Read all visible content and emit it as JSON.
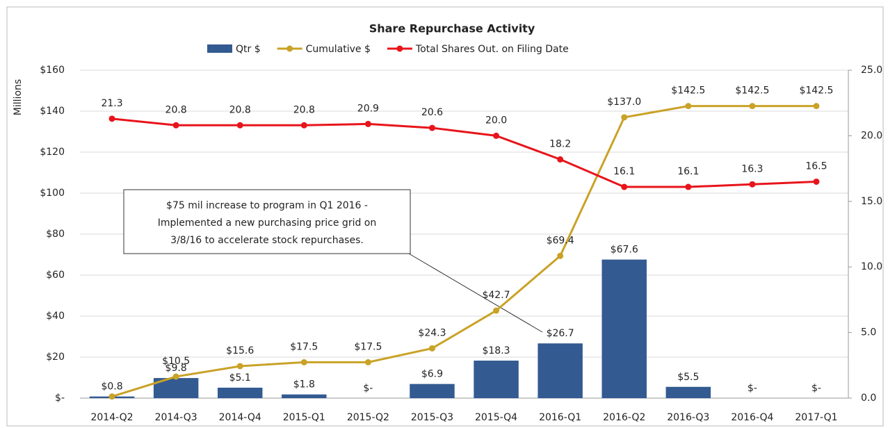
{
  "chart_data": {
    "type": "bar-line",
    "title": "Share Repurchase Activity",
    "y_label": "Millions",
    "categories": [
      "2014-Q2",
      "2014-Q3",
      "2014-Q4",
      "2015-Q1",
      "2015-Q2",
      "2015-Q3",
      "2015-Q4",
      "2016-Q1",
      "2016-Q2",
      "2016-Q3",
      "2016-Q4",
      "2017-Q1"
    ],
    "series": [
      {
        "name": "Qtr $",
        "type": "bar",
        "color": "#335a91",
        "values": [
          0.8,
          9.8,
          5.1,
          1.8,
          0,
          6.9,
          18.3,
          26.7,
          67.6,
          5.5,
          0,
          0
        ],
        "value_labels": [
          "$0.8",
          "$9.8",
          "$5.1",
          "$1.8",
          "$-",
          "$6.9",
          "$18.3",
          "$26.7",
          "$67.6",
          "$5.5",
          "$-",
          "$-"
        ]
      },
      {
        "name": "Cumulative $",
        "type": "line",
        "color": "#c9a227",
        "values": [
          0.8,
          10.5,
          15.6,
          17.5,
          17.5,
          24.3,
          42.7,
          69.4,
          137.0,
          142.5,
          142.5,
          142.5
        ],
        "value_labels": [
          null,
          "$10.5",
          "$15.6",
          "$17.5",
          "$17.5",
          "$24.3",
          "$42.7",
          "$69.4",
          "$137.0",
          "$142.5",
          "$142.5",
          "$142.5"
        ]
      },
      {
        "name": "Total Shares Out. on Filing Date",
        "type": "line",
        "axis": "y2",
        "color": "#e8141b",
        "values": [
          21.3,
          20.8,
          20.8,
          20.8,
          20.9,
          20.6,
          20.0,
          18.2,
          16.1,
          16.1,
          16.3,
          16.5
        ],
        "value_labels": [
          "21.3",
          "20.8",
          "20.8",
          "20.8",
          "20.9",
          "20.6",
          "20.0",
          "18.2",
          "16.1",
          "16.1",
          "16.3",
          "16.5"
        ]
      }
    ],
    "ylim": [
      0,
      160
    ],
    "yticks": [
      {
        "value": 0,
        "label": "$-"
      },
      {
        "value": 20,
        "label": "$20"
      },
      {
        "value": 40,
        "label": "$40"
      },
      {
        "value": 60,
        "label": "$60"
      },
      {
        "value": 80,
        "label": "$80"
      },
      {
        "value": 100,
        "label": "$100"
      },
      {
        "value": 120,
        "label": "$120"
      },
      {
        "value": 140,
        "label": "$140"
      },
      {
        "value": 160,
        "label": "$160"
      }
    ],
    "y2lim": [
      0,
      25
    ],
    "y2ticks": [
      {
        "value": 0,
        "label": "0.0"
      },
      {
        "value": 5,
        "label": "5.0"
      },
      {
        "value": 10,
        "label": "10.0"
      },
      {
        "value": 15,
        "label": "15.0"
      },
      {
        "value": 20,
        "label": "20.0"
      },
      {
        "value": 25,
        "label": "25.0"
      }
    ],
    "grid": true,
    "legend": "top",
    "annotation": [
      "$75 mil increase to program in Q1 2016 -",
      "Implemented a new purchasing price grid on",
      "3/8/16 to accelerate stock repurchases."
    ]
  }
}
